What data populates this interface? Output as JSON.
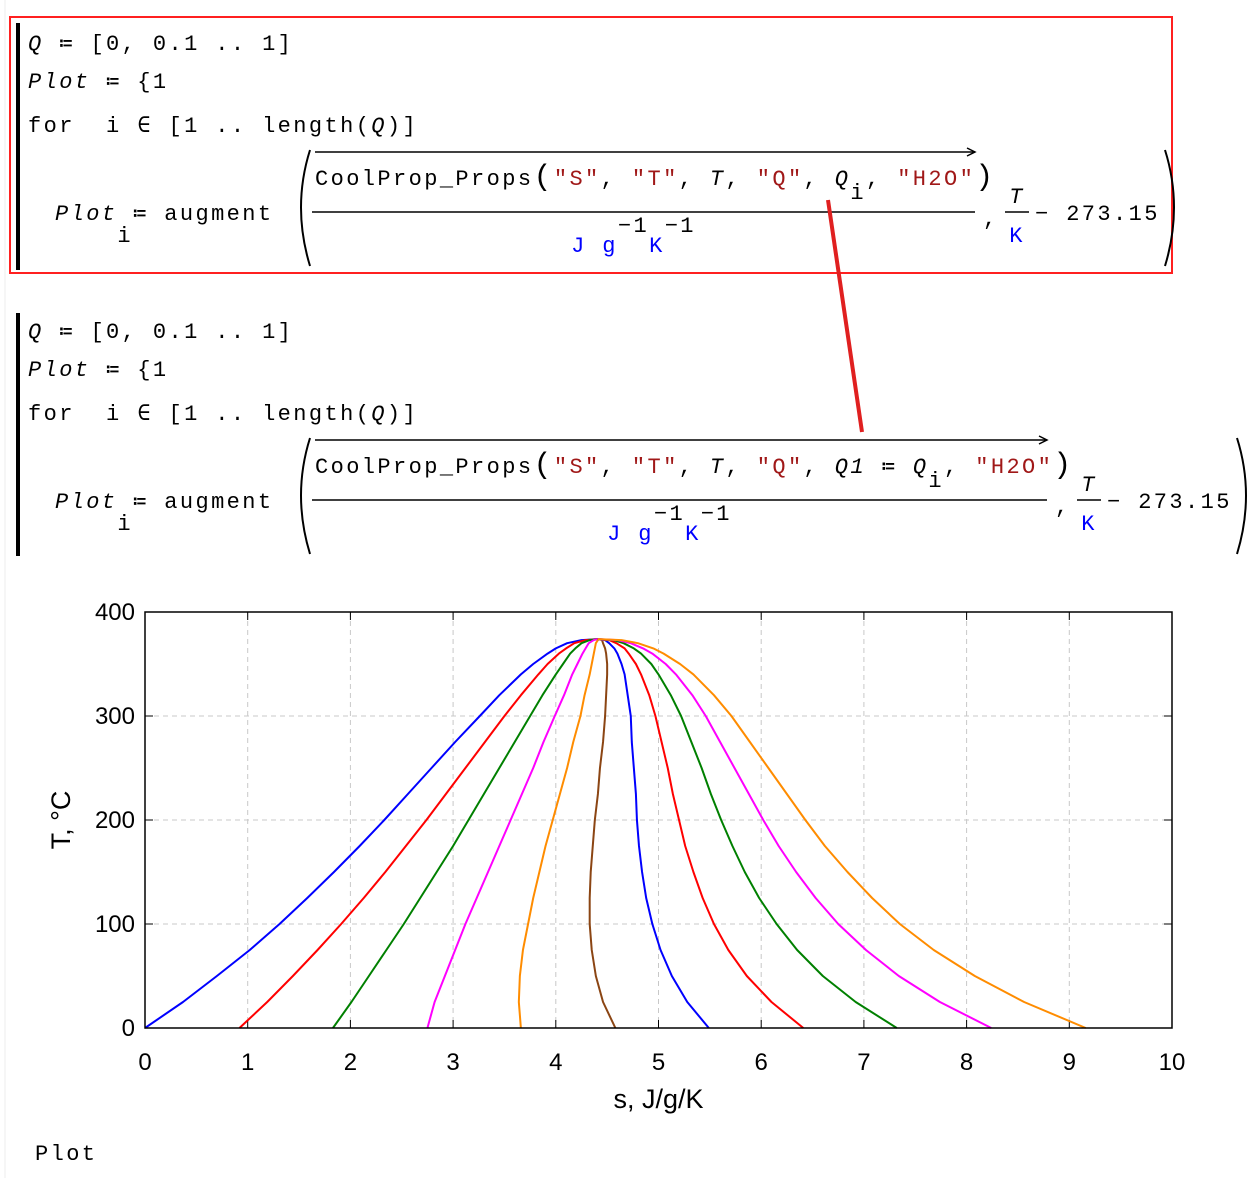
{
  "regions": [
    {
      "q_var": "Q",
      "q_def": " ≔ [0, 0.1 .. 1]",
      "plot_var": "Plot",
      "plot_def": " ≔ {1",
      "for_kw": "for  i ∈ [1 .. length(",
      "for_q": "Q",
      "for_end": ")]",
      "lhs": "Plot",
      "lhs_sub": "i",
      "rhs": "≔ augment",
      "func": "CoolProp_Props",
      "open": "(",
      "close": ")",
      "sep": ", ",
      "args": [
        "\"S\"",
        "\"T\"",
        "T",
        "\"Q\"",
        "Q",
        "\"H2O\""
      ],
      "arg_sub": "i",
      "unit_jg": "J g",
      "unit_k": "K",
      "exp": "−1",
      "frac_num": "T",
      "frac_den": "K",
      "minus": "− 273.15"
    },
    {
      "q_var": "Q",
      "q_def": " ≔ [0, 0.1 .. 1]",
      "plot_var": "Plot",
      "plot_def": " ≔ {1",
      "for_kw": "for  i ∈ [1 .. length(",
      "for_q": "Q",
      "for_end": ")]",
      "lhs": "Plot",
      "lhs_sub": "i",
      "rhs": "≔ augment",
      "func": "CoolProp_Props",
      "open": "(",
      "close": ")",
      "sep": ", ",
      "args": [
        "\"S\"",
        "\"T\"",
        "T",
        "\"Q\"",
        "Q1 ≔ Q",
        "\"H2O\""
      ],
      "arg_sub": "i",
      "unit_jg": "J g",
      "unit_k": "K",
      "exp": "−1",
      "frac_num": "T",
      "frac_den": "K",
      "minus": "− 273.15"
    }
  ],
  "chart_data": {
    "type": "line",
    "xlabel": "s, J/g/K",
    "ylabel": "T, °C",
    "xlim": [
      0,
      10
    ],
    "ylim": [
      0,
      400
    ],
    "xticks": [
      0,
      1,
      2,
      3,
      4,
      5,
      6,
      7,
      8,
      9,
      10
    ],
    "yticks": [
      0,
      100,
      200,
      300,
      400
    ],
    "grid": true,
    "series": [
      {
        "color": "#0000ff",
        "x": [
          0,
          0.37,
          0.7,
          1.02,
          1.31,
          1.58,
          1.84,
          2.09,
          2.33,
          2.56,
          2.79,
          3.02,
          3.26,
          3.45,
          3.66,
          3.78,
          3.92,
          4.0,
          4.11,
          4.25,
          4.41
        ],
        "values": [
          0,
          25,
          50,
          75,
          100,
          125,
          150,
          175,
          200,
          225,
          250,
          275,
          300,
          320,
          340,
          350,
          360,
          365,
          370,
          373,
          373.95
        ]
      },
      {
        "color": "#ff0000",
        "x": [
          0.92,
          1.19,
          1.44,
          1.68,
          1.91,
          2.13,
          2.34,
          2.54,
          2.74,
          2.93,
          3.12,
          3.31,
          3.5,
          3.66,
          3.83,
          3.92,
          4.03,
          4.1,
          4.18,
          4.29,
          4.41
        ],
        "values": [
          0,
          25,
          50,
          75,
          100,
          125,
          150,
          175,
          200,
          225,
          250,
          275,
          300,
          320,
          340,
          350,
          360,
          365,
          370,
          373,
          373.95
        ]
      },
      {
        "color": "#008000",
        "x": [
          1.83,
          2.01,
          2.18,
          2.35,
          2.52,
          2.68,
          2.84,
          3.0,
          3.15,
          3.3,
          3.45,
          3.6,
          3.75,
          3.87,
          4.0,
          4.07,
          4.14,
          4.19,
          4.25,
          4.33,
          4.41
        ],
        "values": [
          0,
          25,
          50,
          75,
          100,
          125,
          150,
          175,
          200,
          225,
          250,
          275,
          300,
          320,
          340,
          350,
          360,
          365,
          370,
          373,
          373.95
        ]
      },
      {
        "color": "#ff00ff",
        "x": [
          2.75,
          2.82,
          2.92,
          3.02,
          3.12,
          3.23,
          3.34,
          3.45,
          3.56,
          3.67,
          3.78,
          3.88,
          3.99,
          4.08,
          4.16,
          4.21,
          4.26,
          4.29,
          4.32,
          4.37,
          4.41
        ],
        "values": [
          0,
          25,
          50,
          75,
          100,
          125,
          150,
          175,
          200,
          225,
          250,
          275,
          300,
          320,
          340,
          350,
          360,
          365,
          370,
          373,
          373.95
        ]
      },
      {
        "color": "#ff8c00",
        "x": [
          3.66,
          3.64,
          3.65,
          3.68,
          3.73,
          3.78,
          3.84,
          3.9,
          3.97,
          4.04,
          4.11,
          4.17,
          4.24,
          4.28,
          4.33,
          4.35,
          4.37,
          4.38,
          4.39,
          4.41,
          4.41
        ],
        "values": [
          0,
          25,
          50,
          75,
          100,
          125,
          150,
          175,
          200,
          225,
          250,
          275,
          300,
          320,
          340,
          350,
          360,
          365,
          370,
          373,
          373.95
        ]
      },
      {
        "color": "#8b4513",
        "x": [
          4.58,
          4.46,
          4.39,
          4.35,
          4.33,
          4.33,
          4.34,
          4.36,
          4.38,
          4.41,
          4.43,
          4.46,
          4.48,
          4.49,
          4.5,
          4.5,
          4.49,
          4.48,
          4.46,
          4.45,
          4.41
        ],
        "values": [
          0,
          25,
          50,
          75,
          100,
          125,
          150,
          175,
          200,
          225,
          250,
          275,
          300,
          320,
          340,
          350,
          360,
          365,
          370,
          373,
          373.95
        ]
      },
      {
        "color": "#0000ff",
        "x": [
          5.49,
          5.28,
          5.13,
          5.02,
          4.94,
          4.88,
          4.84,
          4.81,
          4.79,
          4.78,
          4.76,
          4.74,
          4.73,
          4.7,
          4.67,
          4.64,
          4.6,
          4.57,
          4.52,
          4.48,
          4.41
        ],
        "values": [
          0,
          25,
          50,
          75,
          100,
          125,
          150,
          175,
          200,
          225,
          250,
          275,
          300,
          320,
          340,
          350,
          360,
          365,
          370,
          373,
          373.95
        ]
      },
      {
        "color": "#ff0000",
        "x": [
          6.41,
          6.1,
          5.86,
          5.68,
          5.54,
          5.43,
          5.34,
          5.26,
          5.2,
          5.14,
          5.09,
          5.03,
          4.97,
          4.91,
          4.83,
          4.78,
          4.71,
          4.67,
          4.59,
          4.52,
          4.41
        ],
        "values": [
          0,
          25,
          50,
          75,
          100,
          125,
          150,
          175,
          200,
          225,
          250,
          275,
          300,
          320,
          340,
          350,
          360,
          365,
          370,
          373,
          373.95
        ]
      },
      {
        "color": "#008000",
        "x": [
          7.32,
          6.92,
          6.6,
          6.35,
          6.15,
          5.98,
          5.84,
          5.72,
          5.61,
          5.51,
          5.42,
          5.32,
          5.22,
          5.12,
          5.0,
          4.93,
          4.83,
          4.76,
          4.66,
          4.56,
          4.41
        ],
        "values": [
          0,
          25,
          50,
          75,
          100,
          125,
          150,
          175,
          200,
          225,
          250,
          275,
          300,
          320,
          340,
          350,
          360,
          365,
          370,
          373,
          373.95
        ]
      },
      {
        "color": "#ff00ff",
        "x": [
          8.24,
          7.74,
          7.34,
          7.02,
          6.75,
          6.53,
          6.34,
          6.17,
          6.02,
          5.88,
          5.74,
          5.6,
          5.46,
          5.33,
          5.17,
          5.07,
          4.94,
          4.85,
          4.73,
          4.6,
          4.41
        ],
        "values": [
          0,
          25,
          50,
          75,
          100,
          125,
          150,
          175,
          200,
          225,
          250,
          275,
          300,
          320,
          340,
          350,
          360,
          365,
          370,
          373,
          373.95
        ]
      },
      {
        "color": "#ff8c00",
        "x": [
          9.16,
          8.56,
          8.08,
          7.68,
          7.35,
          7.08,
          6.84,
          6.62,
          6.43,
          6.25,
          6.07,
          5.89,
          5.71,
          5.54,
          5.34,
          5.21,
          5.05,
          4.95,
          4.8,
          4.64,
          4.41
        ],
        "values": [
          0,
          25,
          50,
          75,
          100,
          125,
          150,
          175,
          200,
          225,
          250,
          275,
          300,
          320,
          340,
          350,
          360,
          365,
          370,
          373,
          373.95
        ]
      }
    ]
  },
  "footer": "Plot"
}
